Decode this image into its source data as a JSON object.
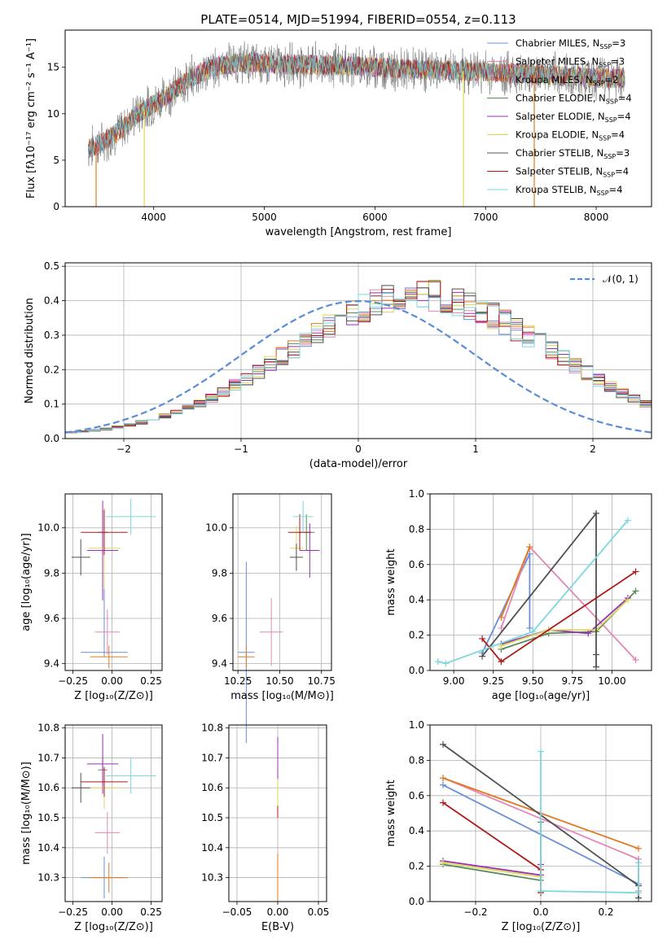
{
  "title": "PLATE=0514, MJD=51994, FIBERID=0554, z=0.113",
  "colors": {
    "Chabrier MILES": "#6a8fd8",
    "Salpeter MILES": "#e487b8",
    "Kroupa MILES": "#e07b22",
    "Chabrier ELODIE": "#5a8a5a",
    "Salpeter ELODIE": "#9b2fb5",
    "Kroupa ELODIE": "#dada5a",
    "Chabrier STELIB": "#505050",
    "Salpeter STELIB": "#b01818",
    "Kroupa STELIB": "#7ad8dc",
    "gaussian": "#5b8dd6"
  },
  "chart_data": [
    {
      "id": "spectrum",
      "type": "line",
      "xlabel": "wavelength [Angstrom, rest frame]",
      "ylabel": "Flux [fλ10⁻¹⁷ erg cm⁻² s⁻¹ A⁻¹]",
      "xlim": [
        3200,
        8500
      ],
      "ylim": [
        0,
        19
      ],
      "xticks": [
        "4000",
        "5000",
        "6000",
        "7000",
        "8000"
      ],
      "yticks": [
        "0",
        "5",
        "10",
        "15"
      ],
      "legend_position": "top-right",
      "continuum": {
        "x": [
          3400,
          3500,
          3700,
          3850,
          3950,
          4100,
          4300,
          4450,
          4600,
          4800,
          5000,
          5300,
          5600,
          6000,
          6300,
          6600,
          6800,
          7000,
          7200,
          7500,
          7800,
          8000,
          8250
        ],
        "y": [
          6.2,
          6.6,
          8.2,
          10.0,
          10.7,
          11.8,
          13.5,
          14.5,
          15.2,
          15.5,
          15.4,
          15.3,
          15.2,
          15.0,
          14.8,
          14.7,
          14.6,
          14.5,
          14.4,
          14.2,
          14.0,
          13.9,
          13.8
        ]
      },
      "series": [
        {
          "name": "Chabrier MILES, N",
          "nssp": "=3",
          "color_key": "Chabrier MILES"
        },
        {
          "name": "Salpeter MILES, N",
          "nssp": "=3",
          "color_key": "Salpeter MILES"
        },
        {
          "name": "Kroupa MILES, N",
          "nssp": "=2",
          "color_key": "Kroupa MILES"
        },
        {
          "name": "Chabrier ELODIE, N",
          "nssp": "=4",
          "color_key": "Chabrier ELODIE"
        },
        {
          "name": "Salpeter ELODIE, N",
          "nssp": "=4",
          "color_key": "Salpeter ELODIE"
        },
        {
          "name": "Kroupa ELODIE, N",
          "nssp": "=4",
          "color_key": "Kroupa ELODIE"
        },
        {
          "name": "Chabrier STELIB, N",
          "nssp": "=3",
          "color_key": "Chabrier STELIB"
        },
        {
          "name": "Salpeter STELIB, N",
          "nssp": "=4",
          "color_key": "Salpeter STELIB"
        },
        {
          "name": "Kroupa STELIB, N",
          "nssp": "=4",
          "color_key": "Kroupa STELIB"
        }
      ],
      "subscript": "SSP"
    },
    {
      "id": "residuals",
      "type": "step",
      "xlabel": "(data-model)/error",
      "ylabel": "Normed distribution",
      "xlim": [
        -2.5,
        2.5
      ],
      "ylim": [
        0,
        0.51
      ],
      "xticks": [
        "−2",
        "−1",
        "0",
        "1",
        "2"
      ],
      "yticks": [
        "0.0",
        "0.1",
        "0.2",
        "0.3",
        "0.4",
        "0.5"
      ],
      "legend": "𝒩(0, 1)",
      "bin_width": 0.1,
      "bin_start": -2.5,
      "base_hist": [
        0.018,
        0.02,
        0.024,
        0.028,
        0.033,
        0.04,
        0.047,
        0.055,
        0.065,
        0.075,
        0.088,
        0.102,
        0.118,
        0.136,
        0.155,
        0.175,
        0.196,
        0.218,
        0.24,
        0.262,
        0.284,
        0.306,
        0.326,
        0.346,
        0.364,
        0.38,
        0.393,
        0.404,
        0.412,
        0.416,
        0.418,
        0.414,
        0.408,
        0.398,
        0.386,
        0.372,
        0.356,
        0.338,
        0.318,
        0.298,
        0.276,
        0.254,
        0.232,
        0.21,
        0.19,
        0.17,
        0.15,
        0.132,
        0.116,
        0.1,
        0.086,
        0.074,
        0.063,
        0.053,
        0.045,
        0.038,
        0.032,
        0.027,
        0.023,
        0.02
      ]
    },
    {
      "id": "age_vs_Z",
      "type": "scatter",
      "xlabel": "Z [log₁₀(Z/Z⊙)]",
      "ylabel": "age  [log₁₀(age/yr)]",
      "xlim": [
        -0.3,
        0.32
      ],
      "ylim": [
        9.37,
        10.15
      ],
      "xticks": [
        -0.25,
        0.0,
        0.25
      ],
      "xtick_labels": [
        "−0.25",
        "0.00",
        "0.25"
      ],
      "yticks": [
        9.4,
        9.6,
        9.8,
        10.0
      ],
      "ytick_labels": [
        "9.4",
        "9.6",
        "9.8",
        "10.0"
      ],
      "points": [
        {
          "series": "Chabrier MILES",
          "x": -0.05,
          "y": 9.45,
          "xerr": 0.15,
          "yerr": 0.02,
          "yerr2": 0.35
        },
        {
          "series": "Salpeter MILES",
          "x": -0.03,
          "y": 9.54,
          "xerr": 0.08,
          "yerr": 0.1
        },
        {
          "series": "Kroupa MILES",
          "x": -0.02,
          "y": 9.43,
          "xerr": 0.12,
          "yerr": 0.05
        },
        {
          "series": "Chabrier ELODIE",
          "x": -0.06,
          "y": 9.98,
          "xerr": 0.03,
          "yerr": 0.1
        },
        {
          "series": "Salpeter ELODIE",
          "x": -0.06,
          "y": 9.9,
          "xerr": 0.1,
          "yerr": 0.22
        },
        {
          "series": "Kroupa ELODIE",
          "x": -0.05,
          "y": 9.91,
          "xerr": 0.1,
          "yerr": 0.18
        },
        {
          "series": "Chabrier STELIB",
          "x": -0.2,
          "y": 9.87,
          "xerr": 0.06,
          "yerr": 0.08
        },
        {
          "series": "Salpeter STELIB",
          "x": -0.05,
          "y": 9.98,
          "xerr": 0.15,
          "yerr": 0.1
        },
        {
          "series": "Kroupa STELIB",
          "x": 0.12,
          "y": 10.05,
          "xerr": 0.16,
          "yerr": 0.08
        }
      ]
    },
    {
      "id": "age_vs_mass",
      "type": "scatter",
      "xlabel": "mass [log₁₀(M/M⊙)]",
      "ylabel": "",
      "xlim": [
        10.22,
        10.81
      ],
      "ylim": [
        9.37,
        10.15
      ],
      "xticks": [
        10.25,
        10.5,
        10.75
      ],
      "xtick_labels": [
        "10.25",
        "10.50",
        "10.75"
      ],
      "yticks": [
        9.4,
        9.6,
        9.8,
        10.0
      ],
      "ytick_labels": [
        "9.4",
        "9.6",
        "9.8",
        "10.0"
      ],
      "points": [
        {
          "series": "Chabrier MILES",
          "x": 10.3,
          "y": 9.45,
          "xerr": 0.05,
          "yerr": 0.4
        },
        {
          "series": "Salpeter MILES",
          "x": 10.45,
          "y": 9.54,
          "xerr": 0.07,
          "yerr": 0.15
        },
        {
          "series": "Kroupa MILES",
          "x": 10.3,
          "y": 9.43,
          "xerr": 0.05,
          "yerr": 0.05
        },
        {
          "series": "Chabrier ELODIE",
          "x": 10.66,
          "y": 9.98,
          "xerr": 0.05,
          "yerr": 0.08
        },
        {
          "series": "Salpeter ELODIE",
          "x": 10.68,
          "y": 9.9,
          "xerr": 0.06,
          "yerr": 0.12
        },
        {
          "series": "Kroupa ELODIE",
          "x": 10.6,
          "y": 9.91,
          "xerr": 0.04,
          "yerr": 0.1
        },
        {
          "series": "Chabrier STELIB",
          "x": 10.6,
          "y": 9.87,
          "xerr": 0.04,
          "yerr": 0.06
        },
        {
          "series": "Salpeter STELIB",
          "x": 10.62,
          "y": 9.98,
          "xerr": 0.07,
          "yerr": 0.08
        },
        {
          "series": "Kroupa STELIB",
          "x": 10.64,
          "y": 10.05,
          "xerr": 0.06,
          "yerr": 0.07
        }
      ]
    },
    {
      "id": "weight_vs_age",
      "type": "line",
      "xlabel": "age  [log₁₀(age/yr)]",
      "ylabel": "mass weight",
      "xlim": [
        8.85,
        10.25
      ],
      "ylim": [
        0.0,
        1.0
      ],
      "xticks": [
        9.0,
        9.25,
        9.5,
        9.75,
        10.0
      ],
      "xtick_labels": [
        "9.00",
        "9.25",
        "9.50",
        "9.75",
        "10.00"
      ],
      "yticks": [
        0.0,
        0.2,
        0.4,
        0.6,
        0.8,
        1.0
      ],
      "ytick_labels": [
        "0.0",
        "0.2",
        "0.4",
        "0.6",
        "0.8",
        "1.0"
      ],
      "series": [
        {
          "series": "Chabrier MILES",
          "x": [
            9.18,
            9.48,
            9.48
          ],
          "y": [
            0.1,
            0.66,
            0.24
          ]
        },
        {
          "series": "Salpeter MILES",
          "x": [
            9.3,
            9.48,
            10.15
          ],
          "y": [
            0.24,
            0.7,
            0.06
          ]
        },
        {
          "series": "Kroupa MILES",
          "x": [
            9.3,
            9.48
          ],
          "y": [
            0.3,
            0.7
          ]
        },
        {
          "series": "Chabrier ELODIE",
          "x": [
            9.3,
            9.6,
            9.9,
            10.15
          ],
          "y": [
            0.12,
            0.21,
            0.22,
            0.45
          ]
        },
        {
          "series": "Salpeter ELODIE",
          "x": [
            9.3,
            9.6,
            9.85,
            10.1
          ],
          "y": [
            0.15,
            0.23,
            0.21,
            0.41
          ]
        },
        {
          "series": "Kroupa ELODIE",
          "x": [
            9.3,
            9.6,
            9.9,
            10.1
          ],
          "y": [
            0.14,
            0.23,
            0.23,
            0.4
          ]
        },
        {
          "series": "Chabrier STELIB",
          "x": [
            9.18,
            9.9,
            9.9,
            9.9
          ],
          "y": [
            0.08,
            0.89,
            0.02,
            0.09
          ]
        },
        {
          "series": "Salpeter STELIB",
          "x": [
            9.18,
            9.3,
            10.15
          ],
          "y": [
            0.18,
            0.05,
            0.56
          ]
        },
        {
          "series": "Kroupa STELIB",
          "x": [
            8.9,
            8.95,
            9.5,
            10.1
          ],
          "y": [
            0.05,
            0.04,
            0.22,
            0.85
          ]
        }
      ]
    },
    {
      "id": "mass_vs_Z",
      "type": "scatter",
      "xlabel": "Z [log₁₀(Z/Z⊙)]",
      "ylabel": "mass [log₁₀(M/M⊙)]",
      "xlim": [
        -0.3,
        0.32
      ],
      "ylim": [
        10.22,
        10.81
      ],
      "xticks": [
        -0.25,
        0.0,
        0.25
      ],
      "xtick_labels": [
        "−0.25",
        "0.00",
        "0.25"
      ],
      "yticks": [
        10.3,
        10.4,
        10.5,
        10.6,
        10.7,
        10.8
      ],
      "ytick_labels": [
        "10.3",
        "10.4",
        "10.5",
        "10.6",
        "10.7",
        "10.8"
      ],
      "points": [
        {
          "series": "Chabrier MILES",
          "x": -0.05,
          "y": 10.3,
          "xerr": 0.15,
          "yerr": 0.07
        },
        {
          "series": "Salpeter MILES",
          "x": -0.03,
          "y": 10.45,
          "xerr": 0.08,
          "yerr": 0.07
        },
        {
          "series": "Kroupa MILES",
          "x": -0.02,
          "y": 10.3,
          "xerr": 0.12,
          "yerr": 0.05
        },
        {
          "series": "Chabrier ELODIE",
          "x": -0.06,
          "y": 10.66,
          "xerr": 0.03,
          "yerr": 0.05
        },
        {
          "series": "Salpeter ELODIE",
          "x": -0.06,
          "y": 10.68,
          "xerr": 0.1,
          "yerr": 0.1
        },
        {
          "series": "Kroupa ELODIE",
          "x": -0.05,
          "y": 10.6,
          "xerr": 0.1,
          "yerr": 0.07
        },
        {
          "series": "Chabrier STELIB",
          "x": -0.2,
          "y": 10.6,
          "xerr": 0.06,
          "yerr": 0.05
        },
        {
          "series": "Salpeter STELIB",
          "x": -0.05,
          "y": 10.62,
          "xerr": 0.15,
          "yerr": 0.05
        },
        {
          "series": "Kroupa STELIB",
          "x": 0.12,
          "y": 10.64,
          "xerr": 0.16,
          "yerr": 0.06
        }
      ]
    },
    {
      "id": "mass_vs_ebv",
      "type": "scatter",
      "xlabel": "E(B-V)",
      "ylabel": "",
      "xlim": [
        -0.06,
        0.06
      ],
      "ylim": [
        10.22,
        10.81
      ],
      "xticks": [
        -0.05,
        0.0,
        0.05
      ],
      "xtick_labels": [
        "−0.05",
        "0.00",
        "0.05"
      ],
      "yticks": [
        10.3,
        10.4,
        10.5,
        10.6,
        10.7,
        10.8
      ],
      "ytick_labels": [
        "10.3",
        "10.4",
        "10.5",
        "10.6",
        "10.7",
        "10.8"
      ],
      "points": [
        {
          "series": "Chabrier MILES",
          "x": 0.0,
          "y": 10.3,
          "yerr": 0.05
        },
        {
          "series": "Kroupa ELODIE",
          "x": 0.0,
          "y": 10.6,
          "yerr": 0.1
        },
        {
          "series": "Salpeter ELODIE",
          "x": 0.0,
          "y": 10.7,
          "yerr": 0.07
        },
        {
          "series": "Salpeter STELIB",
          "x": 0.0,
          "y": 10.52,
          "yerr": 0.02
        },
        {
          "series": "Kroupa MILES",
          "x": 0.0,
          "y": 10.3,
          "yerr": 0.08
        }
      ]
    },
    {
      "id": "weight_vs_Z",
      "type": "line",
      "xlabel": "Z [log₁₀(Z/Z⊙)]",
      "ylabel": "mass weight",
      "xlim": [
        -0.34,
        0.34
      ],
      "ylim": [
        0.0,
        1.0
      ],
      "xticks": [
        -0.2,
        0.0,
        0.2
      ],
      "xtick_labels": [
        "−0.2",
        "0.0",
        "0.2"
      ],
      "yticks": [
        0.0,
        0.2,
        0.4,
        0.6,
        0.8,
        1.0
      ],
      "ytick_labels": [
        "0.0",
        "0.2",
        "0.4",
        "0.6",
        "0.8",
        "1.0"
      ],
      "series": [
        {
          "series": "Chabrier MILES",
          "x": [
            -0.3,
            0.3,
            0.3
          ],
          "y": [
            0.66,
            0.1,
            0.24
          ]
        },
        {
          "series": "Salpeter MILES",
          "x": [
            -0.3,
            0.3,
            0.3
          ],
          "y": [
            0.7,
            0.24,
            0.06
          ]
        },
        {
          "series": "Kroupa MILES",
          "x": [
            -0.3,
            0.3
          ],
          "y": [
            0.7,
            0.3
          ]
        },
        {
          "series": "Chabrier ELODIE",
          "x": [
            -0.3,
            0.0,
            0.0
          ],
          "y": [
            0.21,
            0.12,
            0.45
          ]
        },
        {
          "series": "Salpeter ELODIE",
          "x": [
            -0.3,
            0.0,
            0.0
          ],
          "y": [
            0.23,
            0.15,
            0.21
          ]
        },
        {
          "series": "Kroupa ELODIE",
          "x": [
            -0.3,
            0.0
          ],
          "y": [
            0.22,
            0.14
          ]
        },
        {
          "series": "Chabrier STELIB",
          "x": [
            -0.3,
            0.3,
            0.3
          ],
          "y": [
            0.89,
            0.09,
            0.02
          ]
        },
        {
          "series": "Salpeter STELIB",
          "x": [
            -0.3,
            0.0,
            0.0
          ],
          "y": [
            0.56,
            0.18,
            0.05
          ]
        },
        {
          "series": "Kroupa STELIB",
          "x": [
            0.0,
            0.0,
            0.3,
            0.3
          ],
          "y": [
            0.85,
            0.06,
            0.05,
            0.22
          ]
        }
      ]
    }
  ]
}
